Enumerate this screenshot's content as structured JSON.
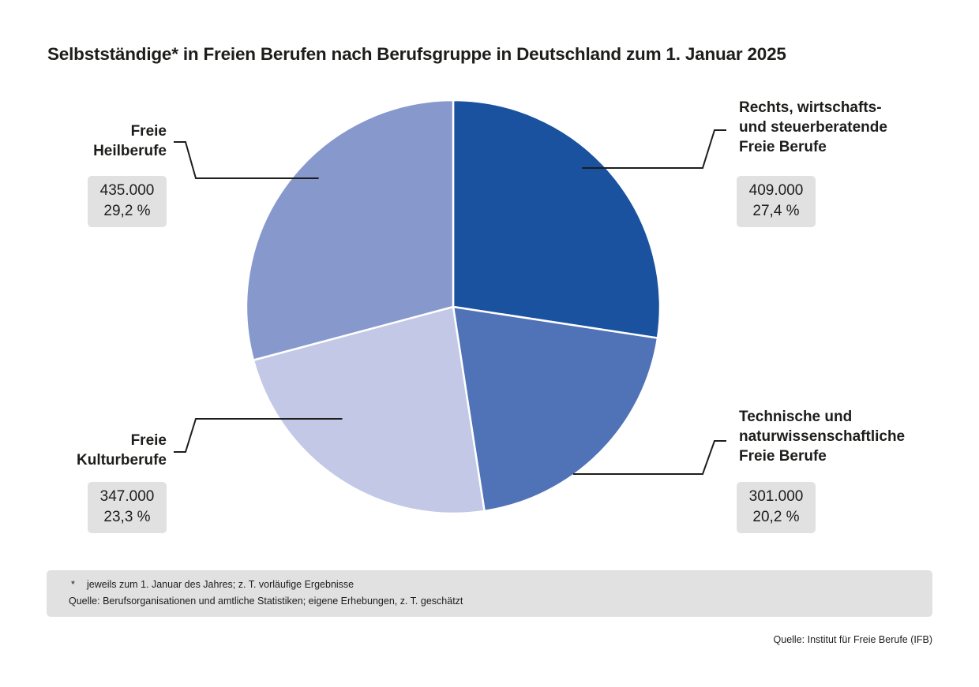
{
  "chart_data": {
    "type": "pie",
    "title": "Selbstständige* in Freien Berufen nach Berufsgruppe in Deutschland zum 1. Januar 2025",
    "start_angle_deg": 0,
    "direction": "clockwise",
    "slices": [
      {
        "label": "Rechts, wirtschafts- und steuerberatende Freie Berufe",
        "label_lines": [
          "Rechts, wirtschafts-",
          "und steuerberatende",
          "Freie Berufe"
        ],
        "value": 409000,
        "value_label": "409.000",
        "percent": 27.4,
        "percent_label": "27,4 %",
        "color": "#1a52a0"
      },
      {
        "label": "Technische und naturwissenschaftliche Freie Berufe",
        "label_lines": [
          "Technische und",
          "naturwissenschaftliche",
          "Freie Berufe"
        ],
        "value": 301000,
        "value_label": "301.000",
        "percent": 20.2,
        "percent_label": "20,2 %",
        "color": "#5072b6"
      },
      {
        "label": "Freie Kulturberufe",
        "label_lines": [
          "Freie",
          "Kulturberufe"
        ],
        "value": 347000,
        "value_label": "347.000",
        "percent": 23.3,
        "percent_label": "23,3 %",
        "color": "#c3c8e7"
      },
      {
        "label": "Freie Heilberufe",
        "label_lines": [
          "Freie",
          "Heilberufe"
        ],
        "value": 435000,
        "value_label": "435.000",
        "percent": 29.2,
        "percent_label": "29,2 %",
        "color": "#8799cc"
      }
    ]
  },
  "footnote": {
    "marker": "*",
    "line1": "jeweils zum 1. Januar des Jahres; z. T. vorläufige Ergebnisse",
    "line2": "Quelle: Berufsorganisationen und amtliche Statistiken; eigene Erhebungen, z. T. geschätzt"
  },
  "source": "Quelle: Institut für Freie Berufe (IFB)"
}
